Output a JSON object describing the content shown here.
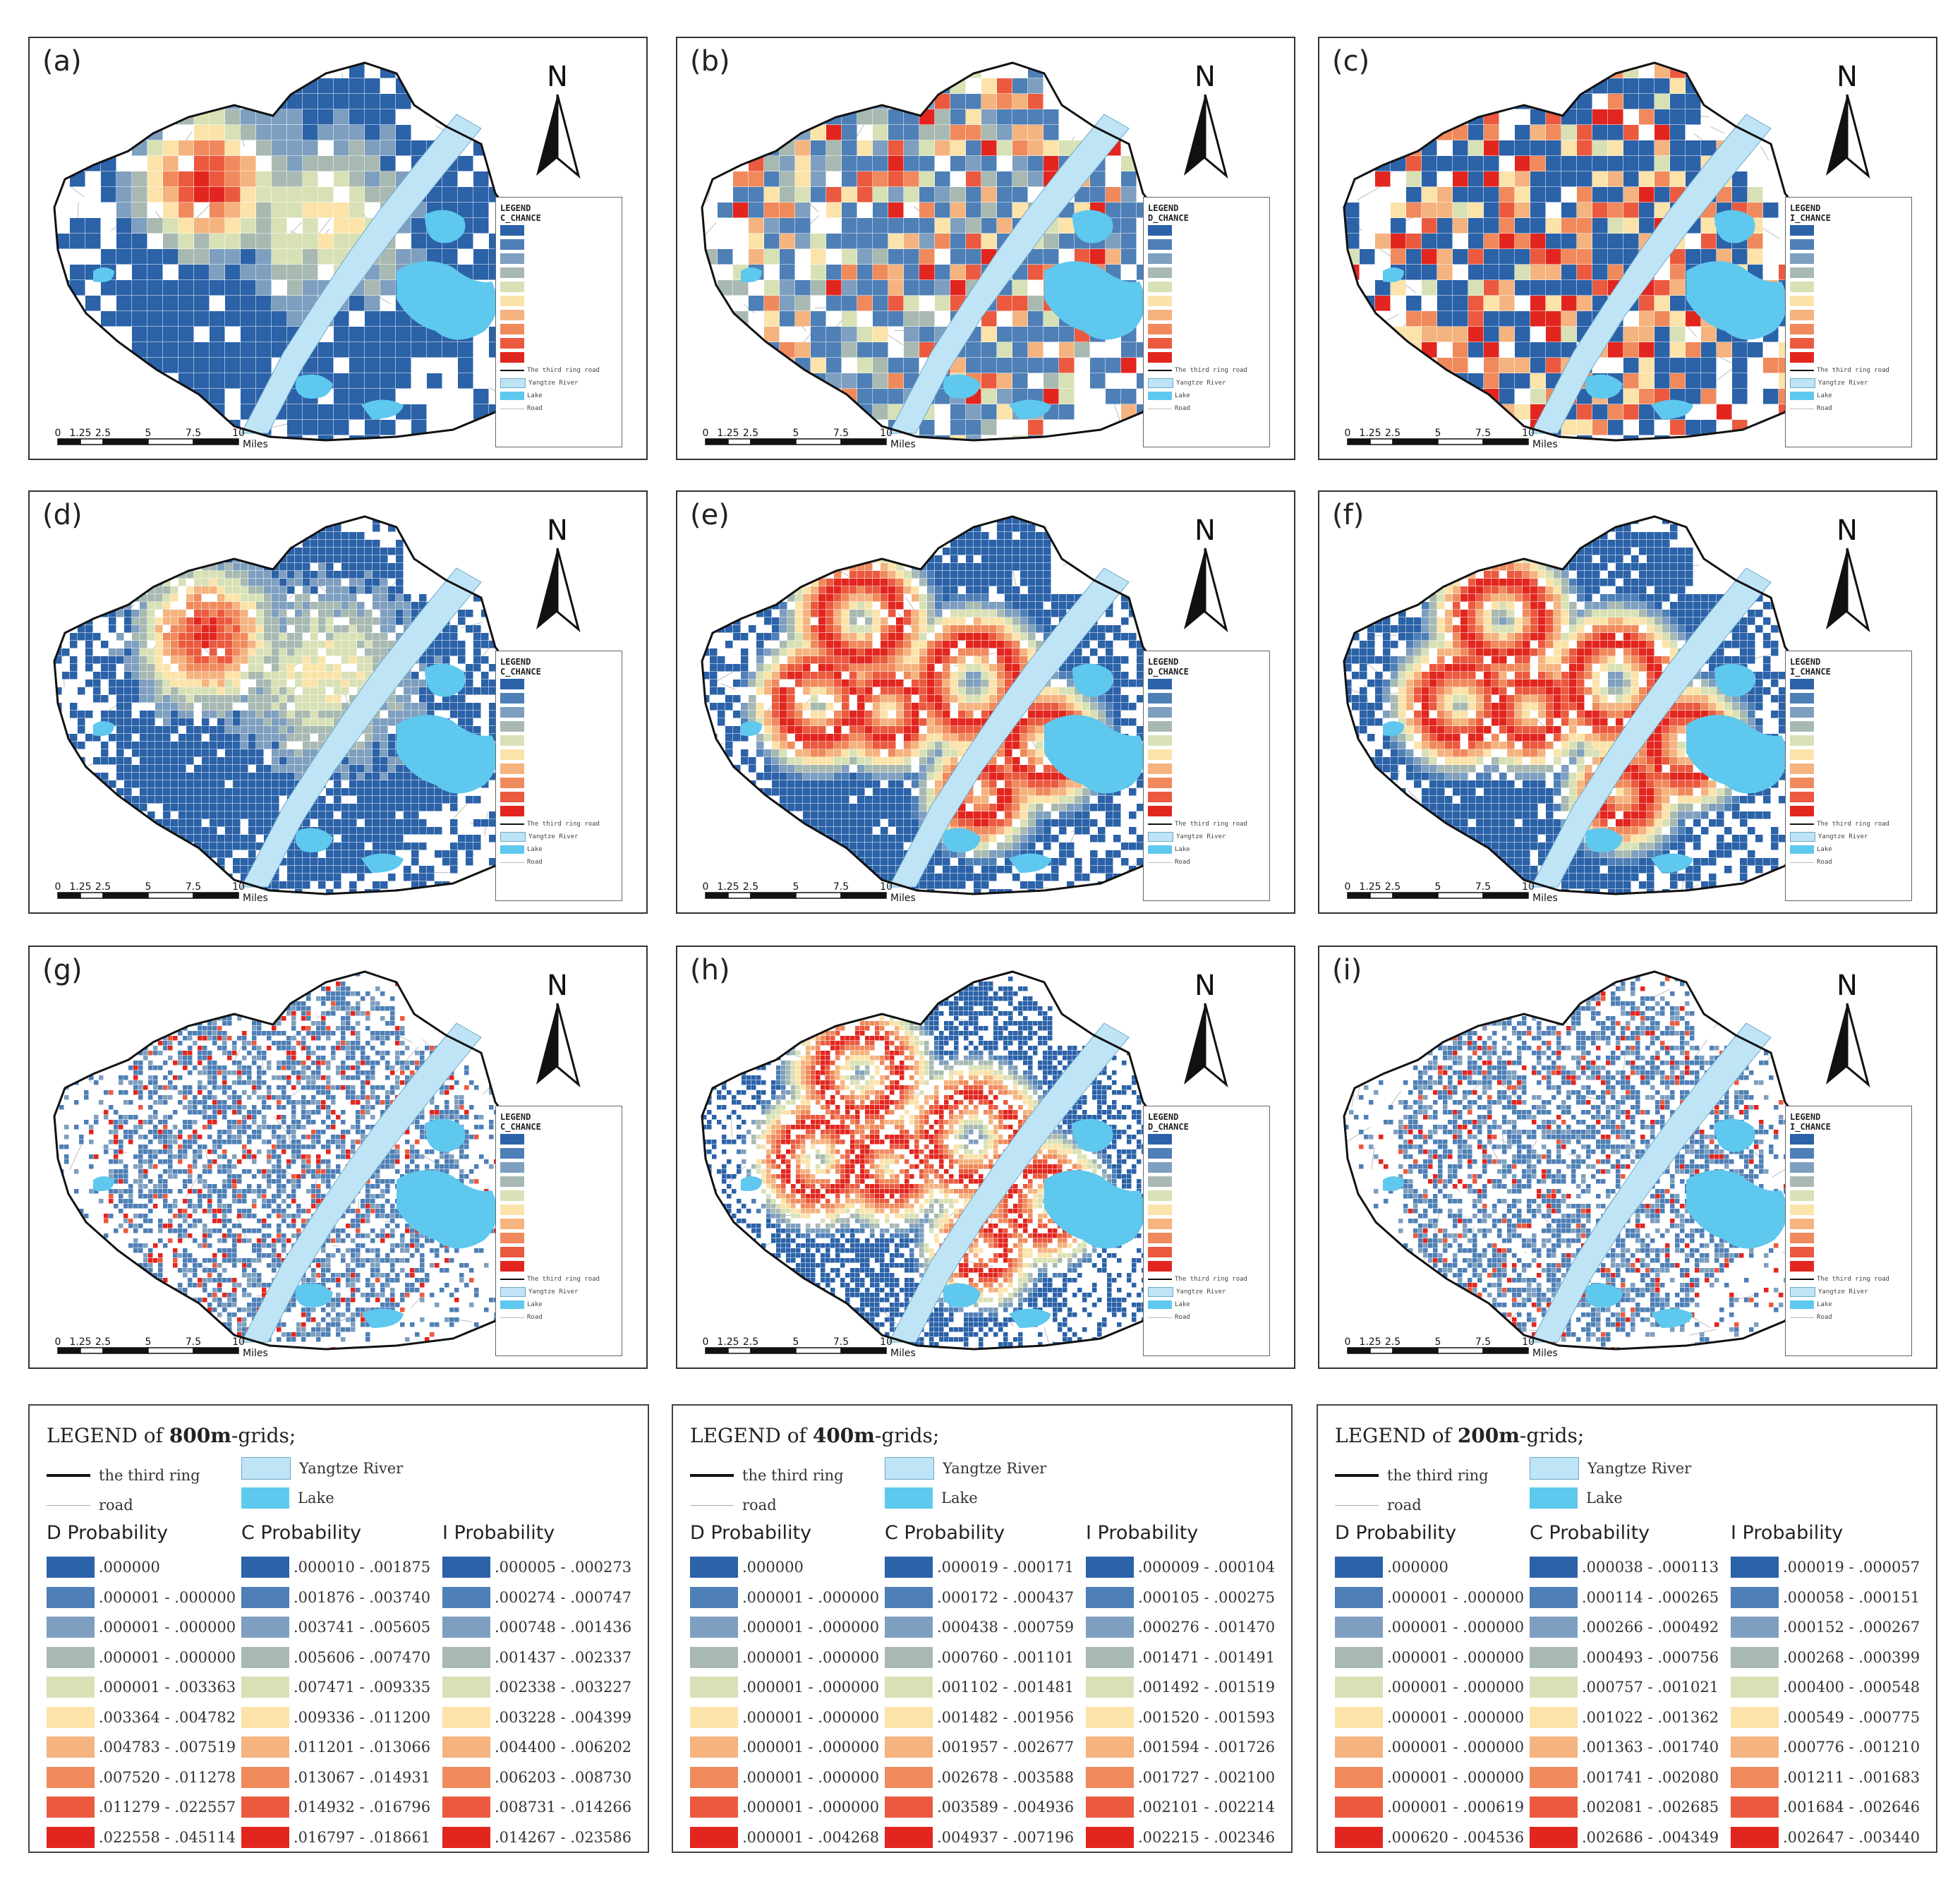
{
  "colors": {
    "ramp": [
      "#2b62a8",
      "#4e7fb6",
      "#7e9fbf",
      "#a8b9b2",
      "#d8e1b6",
      "#fbe3aa",
      "#f5b37f",
      "#f08a5c",
      "#eb5a3f",
      "#e2261f"
    ],
    "yangtze": "#bfe4f6",
    "lake": "#5ec8ee",
    "base": "#ffffff",
    "outline": "#111111"
  },
  "panels": [
    {
      "label": "(a)",
      "legend_field": "C_CHANCE",
      "pattern": "hot",
      "grid": "800m"
    },
    {
      "label": "(b)",
      "legend_field": "D_CHANCE",
      "pattern": "mix",
      "grid": "800m"
    },
    {
      "label": "(c)",
      "legend_field": "I_CHANCE",
      "pattern": "mixhot",
      "grid": "800m"
    },
    {
      "label": "(d)",
      "legend_field": "C_CHANCE",
      "pattern": "hot",
      "grid": "400m"
    },
    {
      "label": "(e)",
      "legend_field": "D_CHANCE",
      "pattern": "rings",
      "grid": "400m"
    },
    {
      "label": "(f)",
      "legend_field": "I_CHANCE",
      "pattern": "rings",
      "grid": "400m"
    },
    {
      "label": "(g)",
      "legend_field": "C_CHANCE",
      "pattern": "sparse",
      "grid": "200m"
    },
    {
      "label": "(h)",
      "legend_field": "D_CHANCE",
      "pattern": "rings",
      "grid": "200m"
    },
    {
      "label": "(i)",
      "legend_field": "I_CHANCE",
      "pattern": "sparse",
      "grid": "200m"
    }
  ],
  "map_common": {
    "north": "N",
    "legend_title": "LEGEND",
    "scale_ticks": [
      "0",
      "1.25",
      "2.5",
      "5",
      "7.5",
      "10"
    ],
    "scale_unit": "Miles",
    "ref_items": [
      "The third ring road",
      "Yangtze River",
      "Lake",
      "Road"
    ]
  },
  "big_legends": [
    {
      "title_prefix": "LEGEND of ",
      "title_bold": "800m",
      "title_suffix": "-grids;",
      "ring_label": "the third ring",
      "road_label": "road",
      "yangtze_label": "Yangtze River",
      "lake_label": "Lake",
      "groups": [
        {
          "header": "D Probability",
          "ranges": [
            ".000000",
            ".000001 - .000000",
            ".000001 - .000000",
            ".000001 - .000000",
            ".000001 - .003363",
            ".003364 - .004782",
            ".004783 - .007519",
            ".007520 - .011278",
            ".011279 - .022557",
            ".022558 - .045114"
          ]
        },
        {
          "header": "C Probability",
          "ranges": [
            ".000010 - .001875",
            ".001876 - .003740",
            ".003741 - .005605",
            ".005606 - .007470",
            ".007471 - .009335",
            ".009336 - .011200",
            ".011201 - .013066",
            ".013067 - .014931",
            ".014932 - .016796",
            ".016797 - .018661"
          ]
        },
        {
          "header": "I Probability",
          "ranges": [
            ".000005 - .000273",
            ".000274 - .000747",
            ".000748 - .001436",
            ".001437 - .002337",
            ".002338 - .003227",
            ".003228 - .004399",
            ".004400 - .006202",
            ".006203 - .008730",
            ".008731 - .014266",
            ".014267 - .023586"
          ]
        }
      ]
    },
    {
      "title_prefix": "LEGEND of ",
      "title_bold": "400m",
      "title_suffix": "-grids;",
      "ring_label": "the third ring",
      "road_label": "road",
      "yangtze_label": "Yangtze River",
      "lake_label": "Lake",
      "groups": [
        {
          "header": "D Probability",
          "ranges": [
            ".000000",
            ".000001 - .000000",
            ".000001 - .000000",
            ".000001 - .000000",
            ".000001 - .000000",
            ".000001 - .000000",
            ".000001 - .000000",
            ".000001 - .000000",
            ".000001 - .000000",
            ".000001 - .004268"
          ]
        },
        {
          "header": "C Probability",
          "ranges": [
            ".000019 - .000171",
            ".000172 - .000437",
            ".000438 - .000759",
            ".000760 - .001101",
            ".001102 - .001481",
            ".001482 - .001956",
            ".001957 - .002677",
            ".002678 - .003588",
            ".003589 - .004936",
            ".004937 - .007196"
          ]
        },
        {
          "header": "I Probability",
          "ranges": [
            ".000009 - .000104",
            ".000105 - .000275",
            ".000276 - .001470",
            ".001471 - .001491",
            ".001492 - .001519",
            ".001520 - .001593",
            ".001594 - .001726",
            ".001727 - .002100",
            ".002101 - .002214",
            ".002215 - .002346"
          ]
        }
      ]
    },
    {
      "title_prefix": "LEGEND of ",
      "title_bold": "200m",
      "title_suffix": "-grids;",
      "ring_label": "the third ring",
      "road_label": "road",
      "yangtze_label": "Yangtze River",
      "lake_label": "Lake",
      "groups": [
        {
          "header": "D Probability",
          "ranges": [
            ".000000",
            ".000001 - .000000",
            ".000001 - .000000",
            ".000001 - .000000",
            ".000001 - .000000",
            ".000001 - .000000",
            ".000001 - .000000",
            ".000001 - .000000",
            ".000001 - .000619",
            ".000620 - .004536"
          ]
        },
        {
          "header": "C Probability",
          "ranges": [
            ".000038 - .000113",
            ".000114 - .000265",
            ".000266 - .000492",
            ".000493 - .000756",
            ".000757 - .001021",
            ".001022 - .001362",
            ".001363 - .001740",
            ".001741 - .002080",
            ".002081 - .002685",
            ".002686 - .004349"
          ]
        },
        {
          "header": "I Probability",
          "ranges": [
            ".000019 - .000057",
            ".000058 - .000151",
            ".000152 - .000267",
            ".000268 - .000399",
            ".000400 - .000548",
            ".000549 - .000775",
            ".000776 - .001210",
            ".001211 - .001683",
            ".001684 - .002646",
            ".002647 - .003440"
          ]
        }
      ]
    }
  ]
}
